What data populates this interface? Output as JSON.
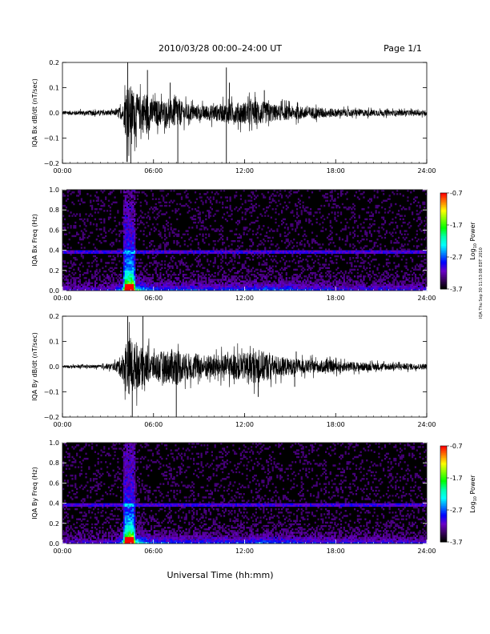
{
  "header": {
    "title": "2010/03/28  00:00–24:00 UT",
    "page": "Page 1/1"
  },
  "footer": {
    "xlabel": "Universal Time (hh:mm)",
    "side_note": "IQA Thu Sep 30 11:53:08 EDT 2010"
  },
  "colorbar": {
    "label_main": "Log",
    "label_sub": "10",
    "label_tail": " Power",
    "ticks": [
      "-0.7",
      "-1.7",
      "-2.7",
      "-3.7"
    ],
    "stops": [
      "#ff0000",
      "#ff7f00",
      "#ffff00",
      "#7fff00",
      "#00ff00",
      "#00ffaa",
      "#00ffff",
      "#0080ff",
      "#0000ff",
      "#6a00c8",
      "#3a0060",
      "#000000"
    ]
  },
  "chart_data": [
    {
      "type": "line",
      "ylabel": "IQA Bx dB/dt (nT/sec)",
      "x_ticks": [
        "00:00",
        "06:00",
        "12:00",
        "18:00",
        "24:00"
      ],
      "y_ticks": [
        "0.2",
        "0.1",
        "0.0",
        "−0.1",
        "−0.2"
      ],
      "ylim": [
        -0.2,
        0.2
      ],
      "xlim_hours": [
        0,
        24
      ],
      "envelope": {
        "x": [
          0,
          3.5,
          4.0,
          4.2,
          4.5,
          5.0,
          5.5,
          6.0,
          6.5,
          7.0,
          7.5,
          8.0,
          9.0,
          10.0,
          11.0,
          12.0,
          13.0,
          14.0,
          15.0,
          16.0,
          17.0,
          18.0,
          20.0,
          22.0,
          24.0
        ],
        "y": [
          0.015,
          0.02,
          0.06,
          0.2,
          0.2,
          0.12,
          0.16,
          0.09,
          0.1,
          0.08,
          0.12,
          0.07,
          0.05,
          0.06,
          0.07,
          0.08,
          0.09,
          0.06,
          0.05,
          0.045,
          0.04,
          0.03,
          0.025,
          0.02,
          0.02
        ]
      },
      "spikes": [
        [
          4.3,
          0.2
        ],
        [
          4.5,
          -0.2
        ],
        [
          5.6,
          0.17
        ],
        [
          7.1,
          0.12
        ],
        [
          7.6,
          -0.2
        ],
        [
          10.8,
          0.18
        ],
        [
          10.8,
          -0.2
        ],
        [
          11.0,
          0.12
        ],
        [
          13.3,
          0.09
        ]
      ]
    },
    {
      "type": "heatmap",
      "ylabel": "IQA Bx Freq (Hz)",
      "x_ticks": [
        "00:00",
        "06:00",
        "12:00",
        "18:00",
        "24:00"
      ],
      "y_ticks": [
        "1.0",
        "0.8",
        "0.6",
        "0.4",
        "0.2",
        "0.0"
      ],
      "ylim": [
        0.0,
        1.0
      ],
      "xlim_hours": [
        0,
        24
      ],
      "zlim": [
        -3.7,
        -0.7
      ],
      "burst_hours": [
        4.0,
        4.8
      ],
      "noise_band_hz": 0.38
    },
    {
      "type": "line",
      "ylabel": "IQA By dB/dt (nT/sec)",
      "x_ticks": [
        "00:00",
        "06:00",
        "12:00",
        "18:00",
        "24:00"
      ],
      "y_ticks": [
        "0.2",
        "0.1",
        "0.0",
        "−0.1",
        "−0.2"
      ],
      "ylim": [
        -0.2,
        0.2
      ],
      "xlim_hours": [
        0,
        24
      ],
      "envelope": {
        "x": [
          0,
          2.5,
          3.5,
          4.0,
          4.2,
          4.5,
          5.0,
          5.5,
          6.0,
          7.0,
          7.5,
          8.0,
          9.0,
          10.0,
          11.0,
          12.0,
          13.0,
          14.0,
          15.0,
          16.0,
          17.0,
          18.0,
          20.0,
          22.0,
          24.0
        ],
        "y": [
          0.01,
          0.012,
          0.03,
          0.1,
          0.2,
          0.2,
          0.15,
          0.12,
          0.1,
          0.12,
          0.14,
          0.1,
          0.09,
          0.08,
          0.09,
          0.1,
          0.12,
          0.08,
          0.06,
          0.05,
          0.045,
          0.04,
          0.03,
          0.025,
          0.02
        ]
      },
      "spikes": [
        [
          4.3,
          0.2
        ],
        [
          4.6,
          -0.2
        ],
        [
          5.3,
          0.2
        ],
        [
          7.5,
          -0.2
        ],
        [
          12.9,
          -0.12
        ],
        [
          15.3,
          -0.08
        ],
        [
          15.4,
          0.06
        ]
      ]
    },
    {
      "type": "heatmap",
      "ylabel": "IQA By Freq (Hz)",
      "x_ticks": [
        "00:00",
        "06:00",
        "12:00",
        "18:00",
        "24:00"
      ],
      "y_ticks": [
        "1.0",
        "0.8",
        "0.6",
        "0.4",
        "0.2",
        "0.0"
      ],
      "ylim": [
        0.0,
        1.0
      ],
      "xlim_hours": [
        0,
        24
      ],
      "zlim": [
        -3.7,
        -0.7
      ],
      "burst_hours": [
        4.0,
        4.8
      ],
      "noise_band_hz": 0.38
    }
  ]
}
